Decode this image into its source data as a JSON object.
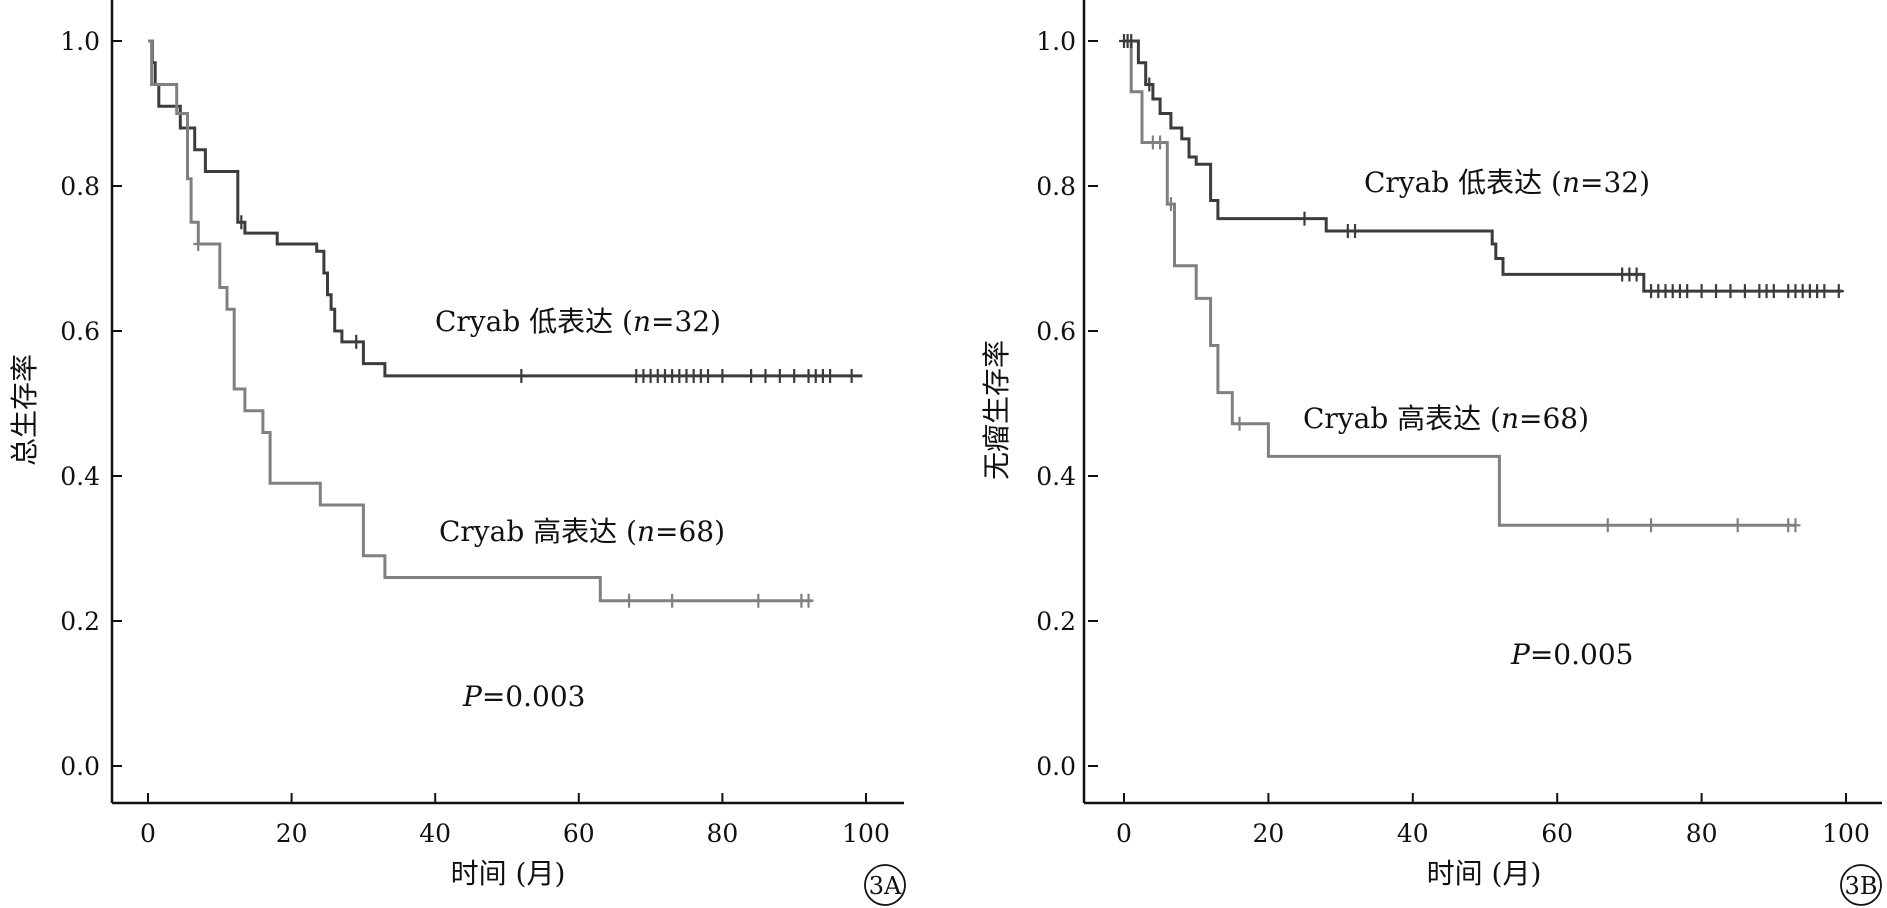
{
  "chart_data": [
    {
      "type": "line",
      "panel_label": "3A",
      "xlabel": "时间 (月)",
      "ylabel": "总生存率",
      "xlim": [
        0,
        100
      ],
      "ylim": [
        0,
        1.0
      ],
      "x_ticks": [
        "0",
        "20",
        "40",
        "60",
        "80",
        "100"
      ],
      "y_ticks": [
        "0.0",
        "0.2",
        "0.4",
        "0.6",
        "0.8",
        "1.0"
      ],
      "grid": false,
      "annotation": {
        "p_prefix": "P",
        "p_value": "=0.003"
      },
      "series": [
        {
          "name": "Cryab 低表达 (n=32)",
          "label_parts": [
            "Cryab 低表达 (",
            "n",
            "=32)"
          ],
          "color": "#3c3c3c",
          "step_points": [
            [
              0,
              1.0
            ],
            [
              0.6,
              1.0
            ],
            [
              0.6,
              0.97
            ],
            [
              1.0,
              0.97
            ],
            [
              1.0,
              0.94
            ],
            [
              1.5,
              0.94
            ],
            [
              1.5,
              0.91
            ],
            [
              4.5,
              0.91
            ],
            [
              4.5,
              0.88
            ],
            [
              6.5,
              0.88
            ],
            [
              6.5,
              0.85
            ],
            [
              8,
              0.85
            ],
            [
              8,
              0.82
            ],
            [
              12.5,
              0.82
            ],
            [
              12.5,
              0.75
            ],
            [
              13.5,
              0.75
            ],
            [
              13.5,
              0.735
            ],
            [
              18,
              0.735
            ],
            [
              18,
              0.72
            ],
            [
              23.5,
              0.72
            ],
            [
              23.5,
              0.71
            ],
            [
              24.5,
              0.71
            ],
            [
              24.5,
              0.68
            ],
            [
              25,
              0.68
            ],
            [
              25,
              0.65
            ],
            [
              25.5,
              0.65
            ],
            [
              25.5,
              0.63
            ],
            [
              26,
              0.63
            ],
            [
              26,
              0.6
            ],
            [
              27,
              0.6
            ],
            [
              27,
              0.585
            ],
            [
              30,
              0.585
            ],
            [
              30,
              0.555
            ],
            [
              33,
              0.555
            ],
            [
              33,
              0.538
            ],
            [
              99.5,
              0.538
            ]
          ],
          "censored_x": [
            13,
            29,
            52,
            68,
            69,
            70,
            71,
            72,
            73,
            74,
            75,
            76,
            77,
            78,
            80,
            84,
            86,
            88,
            90,
            92,
            93,
            94,
            95,
            98
          ]
        },
        {
          "name": "Cryab 高表达 (n=68)",
          "label_parts": [
            "Cryab 高表达 (",
            "n",
            "=68)"
          ],
          "color": "#808080",
          "step_points": [
            [
              0,
              1.0
            ],
            [
              0.5,
              1.0
            ],
            [
              0.5,
              0.94
            ],
            [
              4,
              0.94
            ],
            [
              4,
              0.9
            ],
            [
              5.5,
              0.9
            ],
            [
              5.5,
              0.81
            ],
            [
              6,
              0.81
            ],
            [
              6,
              0.75
            ],
            [
              7,
              0.75
            ],
            [
              7,
              0.72
            ],
            [
              10,
              0.72
            ],
            [
              10,
              0.66
            ],
            [
              11,
              0.66
            ],
            [
              11,
              0.63
            ],
            [
              12,
              0.63
            ],
            [
              12,
              0.52
            ],
            [
              13.5,
              0.52
            ],
            [
              13.5,
              0.49
            ],
            [
              16,
              0.49
            ],
            [
              16,
              0.46
            ],
            [
              17,
              0.46
            ],
            [
              17,
              0.39
            ],
            [
              24,
              0.39
            ],
            [
              24,
              0.36
            ],
            [
              30,
              0.36
            ],
            [
              30,
              0.29
            ],
            [
              33,
              0.29
            ],
            [
              33,
              0.26
            ],
            [
              63,
              0.26
            ],
            [
              63,
              0.228
            ],
            [
              92.5,
              0.228
            ]
          ],
          "censored_x": [
            7,
            67,
            73,
            85,
            91,
            92
          ]
        }
      ]
    },
    {
      "type": "line",
      "panel_label": "3B",
      "xlabel": "时间 (月)",
      "ylabel": "无瘤生存率",
      "xlim": [
        0,
        100
      ],
      "ylim": [
        0,
        1.0
      ],
      "x_ticks": [
        "0",
        "20",
        "40",
        "60",
        "80",
        "100"
      ],
      "y_ticks": [
        "0.0",
        "0.2",
        "0.4",
        "0.6",
        "0.8",
        "1.0"
      ],
      "grid": false,
      "annotation": {
        "p_prefix": "P",
        "p_value": "=0.005"
      },
      "series": [
        {
          "name": "Cryab 低表达 (n=32)",
          "label_parts": [
            "Cryab 低表达 (",
            "n",
            "=32)"
          ],
          "color": "#3c3c3c",
          "step_points": [
            [
              0,
              1.0
            ],
            [
              2,
              1.0
            ],
            [
              2,
              0.97
            ],
            [
              3,
              0.97
            ],
            [
              3,
              0.94
            ],
            [
              4,
              0.94
            ],
            [
              4,
              0.92
            ],
            [
              5,
              0.92
            ],
            [
              5,
              0.9
            ],
            [
              6.5,
              0.9
            ],
            [
              6.5,
              0.88
            ],
            [
              8,
              0.88
            ],
            [
              8,
              0.865
            ],
            [
              9,
              0.865
            ],
            [
              9,
              0.84
            ],
            [
              10,
              0.84
            ],
            [
              10,
              0.83
            ],
            [
              12,
              0.83
            ],
            [
              12,
              0.78
            ],
            [
              13,
              0.78
            ],
            [
              13,
              0.755
            ],
            [
              28,
              0.755
            ],
            [
              28,
              0.738
            ],
            [
              51,
              0.738
            ],
            [
              51,
              0.72
            ],
            [
              51.5,
              0.72
            ],
            [
              51.5,
              0.7
            ],
            [
              52.5,
              0.7
            ],
            [
              52.5,
              0.678
            ],
            [
              72,
              0.678
            ],
            [
              72,
              0.655
            ],
            [
              99.5,
              0.655
            ]
          ],
          "censored_x": [
            0,
            0.5,
            1,
            3.5,
            25,
            31,
            32,
            69,
            70,
            71,
            73,
            74,
            75,
            76,
            77,
            78,
            80,
            82,
            84,
            86,
            88,
            89,
            90,
            92,
            93,
            94,
            95,
            96,
            97,
            99
          ]
        },
        {
          "name": "Cryab 高表达 (n=68)",
          "label_parts": [
            "Cryab 高表达 (",
            "n",
            "=68)"
          ],
          "color": "#808080",
          "step_points": [
            [
              0,
              1.0
            ],
            [
              1,
              1.0
            ],
            [
              1,
              0.93
            ],
            [
              2.5,
              0.93
            ],
            [
              2.5,
              0.86
            ],
            [
              6,
              0.86
            ],
            [
              6,
              0.775
            ],
            [
              7,
              0.775
            ],
            [
              7,
              0.69
            ],
            [
              10,
              0.69
            ],
            [
              10,
              0.645
            ],
            [
              12,
              0.645
            ],
            [
              12,
              0.58
            ],
            [
              13,
              0.58
            ],
            [
              13,
              0.515
            ],
            [
              15,
              0.515
            ],
            [
              15,
              0.472
            ],
            [
              20,
              0.472
            ],
            [
              20,
              0.427
            ],
            [
              52,
              0.427
            ],
            [
              52,
              0.332
            ],
            [
              93,
              0.332
            ]
          ],
          "censored_x": [
            4,
            5,
            6.5,
            16,
            67,
            73,
            85,
            92,
            93
          ]
        }
      ]
    }
  ]
}
